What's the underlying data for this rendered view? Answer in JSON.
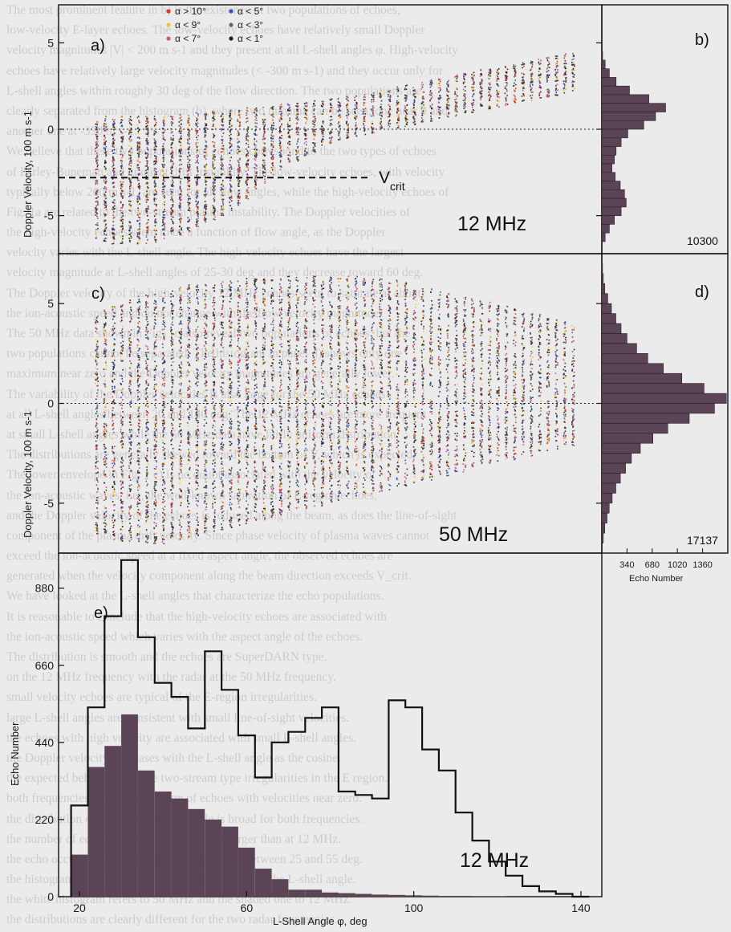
{
  "background_text": [
    "The most prominent feature in b) is the existence of two populations of echoes,",
    "low-velocity E-layer echoes. The low-velocity echoes have relatively small Doppler",
    "velocity magnitudes |V| < 200 m s-1 and they present at all L-shell angles φ. High-velocity",
    "echoes have relatively large velocity magnitudes (< -300 m s-1) and they occur only for",
    "L-shell angles within roughly 30 deg of the flow direction. The two populations are",
    "clearly separated from the histogram (b), where two maxima can be seen; one near 0 and",
    "another one at -350 m s-1.",
    "We believe that these two populations of echoes correspond to the two types of echoes",
    "of Farley-Buneman and gradient drift instability. The low-velocity echoes, with velocity",
    "typically below 200 m s-1, are seen for all flow angles, while the high-velocity echoes of",
    "Fig. 1a are related to the two-stream plasma instability. The Doppler velocities of",
    "the high-velocity echoes seem to be a function of flow angle, as the Doppler",
    "velocity varies with the L-shell angle. The high-velocity echoes have the largest",
    "velocity magnitude at L-shell angles of 25-30 deg and they decrease toward 60 deg.",
    "The Doppler velocity of the high-velocity 12 MHz echoes seem to saturate at about",
    "the ion-acoustic speed and do not change with the flow velocity magnitude.",
    "The 50 MHz data shown in Fig. 1c also reveal two populations of echoes, but the",
    "two populations cannot be separated. The histogram in panel d) shows only one",
    "maximum near zero and the Doppler velocity magnitudes are generally lower.",
    "The variability of the Doppler velocities is also large for the 50 MHz echoes",
    "at all L-shell angles between 20 and 140 deg. The 12 MHz echoes are more frequent",
    "at small L-shell angles while the 50 MHz data have fairly uniform distribution.",
    "The distributions are generally skewed toward the bottom of V, which is expected.",
    "The lower envelope in Fig. 1 c) is no doubt associated with the velocity of",
    "the ion-acoustic waves, i.e., the well-known saturation of E-region echoes,",
    "and the Doppler velocity of the echoes is reduced along the beam, as does the line-of-sight",
    "component of the plasma drift velocity. Since phase velocity of plasma waves cannot",
    "exceed the ion-acoustic speed at a fixed aspect angle, the observed echoes are",
    "generated when the velocity component along the beam direction exceeds V_crit.",
    "We have looked at the L-shell angles that characterize the echo populations.",
    "It is reasonable to conclude that the high-velocity echoes are associated with",
    "the ion-acoustic speed which varies with the aspect angle of the echoes.",
    "The distribution is smooth and the echoes are SuperDARN type.",
    "on the 12 MHz frequency with the radar at the 50 MHz frequency.",
    "small velocity echoes are typical of the E-region irregularities.",
    "large L-shell angles are consistent with small line-of-sight velocities.",
    "the echoes with high velocity are associated with small L-shell angles.",
    "the Doppler velocity decreases with the L-shell angle as the cosine.",
    "the expected behaviour for the two-stream type irregularities in the E region.",
    "both frequencies show a population of echoes with velocities near zero.",
    "the distribution of echoes in L-shell angle is broad for both frequencies.",
    "the number of echoes detected at 50 MHz is larger than at 12 MHz.",
    "the echo occurrence is highest at L-shell angles between 25 and 55 deg.",
    "the histograms e) show the number of echoes versus the L-shell angle.",
    "the white histogram refers to 50 MHz and the shaded one to 12 MHz.",
    "the distributions are clearly different for the two radar frequencies."
  ],
  "panel_labels": [
    "a)",
    "b)",
    "c)",
    "d)",
    "e)"
  ],
  "colors": {
    "hist_fill": "#5b4456",
    "dot_dark": "#333333",
    "alpha_gt_10": "#d93a2c",
    "alpha_lt_9": "#e8c93a",
    "alpha_lt_7": "#c45a8c",
    "alpha_lt_5": "#3a56c4",
    "alpha_lt_3": "#666666",
    "alpha_lt_1": "#222222"
  },
  "chart_data": [
    {
      "id": "a",
      "type": "scatter",
      "title": "",
      "frequency_label": "12 MHz",
      "xlim": [
        15,
        145
      ],
      "ylim": [
        -7.2,
        7.2
      ],
      "ylabel": "Doppler Velocity, 100 m s-1",
      "yticks": [
        -5,
        0,
        5
      ],
      "reference_lines": [
        {
          "y": 0,
          "style": "dotted"
        },
        {
          "y": -2.8,
          "style": "dashed",
          "label": "V",
          "label_sub": "crit"
        }
      ],
      "legend": [
        "α > 10°",
        "α < 9°",
        "α < 7°",
        "α < 5°",
        "α < 3°",
        "α < 1°"
      ],
      "legend_placement": "top-left",
      "x_bins": [
        24,
        26,
        28,
        30,
        32,
        34,
        36,
        38,
        40,
        42,
        44,
        46,
        48,
        50,
        52,
        54,
        56,
        58,
        60,
        62,
        64,
        66,
        68,
        70,
        72,
        74,
        76,
        78,
        80,
        82,
        84,
        86,
        88,
        90,
        92,
        94,
        96,
        98,
        100,
        102,
        104,
        106,
        108,
        110,
        112,
        114,
        116,
        118,
        120,
        122,
        124,
        126,
        128,
        130,
        132,
        134,
        136,
        138
      ],
      "column_ranges": [
        [
          -6.3,
          0.5
        ],
        [
          -6.5,
          0.8
        ],
        [
          -6.6,
          0.8
        ],
        [
          -6.6,
          0.8
        ],
        [
          -6.6,
          0.8
        ],
        [
          -6.6,
          0.8
        ],
        [
          -6.6,
          0.8
        ],
        [
          -6.5,
          0.8
        ],
        [
          -6.3,
          0.8
        ],
        [
          -6.2,
          0.8
        ],
        [
          -6.1,
          0.9
        ],
        [
          -5.9,
          0.9
        ],
        [
          -5.6,
          1.0
        ],
        [
          -5.4,
          1.0
        ],
        [
          -5.2,
          1.1
        ],
        [
          -5.0,
          1.1
        ],
        [
          -4.8,
          1.2
        ],
        [
          -4.4,
          1.2
        ],
        [
          -4.0,
          1.3
        ],
        [
          -3.5,
          1.3
        ],
        [
          -3.1,
          1.4
        ],
        [
          -2.6,
          1.4
        ],
        [
          -2.3,
          1.5
        ],
        [
          -2.0,
          1.5
        ],
        [
          -1.8,
          1.6
        ],
        [
          -1.5,
          1.6
        ],
        [
          -1.3,
          1.7
        ],
        [
          -1.0,
          1.7
        ],
        [
          -0.8,
          1.8
        ],
        [
          -0.6,
          1.9
        ],
        [
          -0.5,
          2.0
        ],
        [
          -0.4,
          2.0
        ],
        [
          -0.3,
          2.1
        ],
        [
          -0.2,
          2.2
        ],
        [
          -0.1,
          2.3
        ],
        [
          0.0,
          2.4
        ],
        [
          0.1,
          2.5
        ],
        [
          0.2,
          2.6
        ],
        [
          0.3,
          2.7
        ],
        [
          0.4,
          2.8
        ],
        [
          0.5,
          2.9
        ],
        [
          0.6,
          3.0
        ],
        [
          0.7,
          3.1
        ],
        [
          0.8,
          3.2
        ],
        [
          0.9,
          3.3
        ],
        [
          1.0,
          3.4
        ],
        [
          1.1,
          3.5
        ],
        [
          1.2,
          3.6
        ],
        [
          1.3,
          3.6
        ],
        [
          1.4,
          3.7
        ],
        [
          1.5,
          3.8
        ],
        [
          1.6,
          3.9
        ],
        [
          1.7,
          4.0
        ],
        [
          1.8,
          4.1
        ],
        [
          1.9,
          4.2
        ],
        [
          2.0,
          4.3
        ],
        [
          2.1,
          4.4
        ],
        [
          2.2,
          4.5
        ]
      ]
    },
    {
      "id": "b",
      "type": "bar",
      "orientation": "horizontal",
      "total_label": "10300",
      "bin_width": 0.5,
      "bins_y": [
        4.0,
        3.5,
        3.0,
        2.5,
        2.0,
        1.5,
        1.0,
        0.5,
        0.0,
        -0.5,
        -1.0,
        -1.5,
        -2.0,
        -2.5,
        -3.0,
        -3.5,
        -4.0,
        -4.5,
        -5.0,
        -5.5,
        -6.0,
        -6.5
      ],
      "values": [
        10,
        40,
        90,
        170,
        330,
        560,
        760,
        640,
        500,
        310,
        230,
        170,
        150,
        120,
        160,
        220,
        270,
        290,
        230,
        150,
        90,
        40
      ],
      "xlim": [
        0,
        1500
      ]
    },
    {
      "id": "c",
      "type": "scatter",
      "title": "",
      "frequency_label": "50 MHz",
      "xlim": [
        15,
        145
      ],
      "ylim": [
        -7.5,
        7.5
      ],
      "ylabel": "Doppler Velocity, 100 m s-1",
      "yticks": [
        -5,
        0,
        5
      ],
      "reference_lines": [
        {
          "y": 0,
          "style": "dotted"
        }
      ],
      "x_bins": [
        24,
        26,
        28,
        30,
        32,
        34,
        36,
        38,
        40,
        42,
        44,
        46,
        48,
        50,
        52,
        54,
        56,
        58,
        60,
        62,
        64,
        66,
        68,
        70,
        72,
        74,
        76,
        78,
        80,
        82,
        84,
        86,
        88,
        90,
        92,
        94,
        96,
        98,
        100,
        102,
        104,
        106,
        108,
        110,
        112,
        114,
        116,
        118,
        120,
        122,
        124,
        126,
        128,
        130,
        132,
        134,
        136,
        138
      ],
      "column_ranges": [
        [
          -6.5,
          4.5
        ],
        [
          -6.6,
          4.7
        ],
        [
          -6.8,
          4.9
        ],
        [
          -6.9,
          5.1
        ],
        [
          -7.0,
          5.2
        ],
        [
          -7.1,
          5.4
        ],
        [
          -7.1,
          5.5
        ],
        [
          -7.1,
          5.6
        ],
        [
          -7.0,
          5.7
        ],
        [
          -6.9,
          5.8
        ],
        [
          -6.8,
          5.9
        ],
        [
          -6.7,
          6.0
        ],
        [
          -6.6,
          6.0
        ],
        [
          -6.5,
          6.1
        ],
        [
          -6.4,
          6.1
        ],
        [
          -6.3,
          6.2
        ],
        [
          -6.2,
          6.2
        ],
        [
          -6.1,
          6.2
        ],
        [
          -6.0,
          6.3
        ],
        [
          -5.9,
          6.3
        ],
        [
          -5.8,
          6.3
        ],
        [
          -5.7,
          6.3
        ],
        [
          -5.6,
          6.4
        ],
        [
          -5.5,
          6.4
        ],
        [
          -5.4,
          6.4
        ],
        [
          -5.3,
          6.4
        ],
        [
          -5.2,
          6.4
        ],
        [
          -5.1,
          6.4
        ],
        [
          -5.0,
          6.4
        ],
        [
          -4.9,
          6.4
        ],
        [
          -4.8,
          6.4
        ],
        [
          -4.7,
          6.4
        ],
        [
          -4.6,
          6.3
        ],
        [
          -4.5,
          6.3
        ],
        [
          -4.4,
          6.3
        ],
        [
          -4.3,
          6.2
        ],
        [
          -4.2,
          6.2
        ],
        [
          -4.1,
          6.1
        ],
        [
          -4.0,
          6.0
        ],
        [
          -3.9,
          5.9
        ],
        [
          -3.8,
          5.8
        ],
        [
          -3.7,
          5.7
        ],
        [
          -3.6,
          5.6
        ],
        [
          -3.5,
          5.5
        ],
        [
          -3.4,
          5.4
        ],
        [
          -3.3,
          5.3
        ],
        [
          -3.2,
          5.2
        ],
        [
          -3.1,
          5.1
        ],
        [
          -3.0,
          5.0
        ],
        [
          -2.9,
          4.9
        ],
        [
          -2.8,
          4.8
        ],
        [
          -2.7,
          4.7
        ],
        [
          -2.6,
          4.6
        ],
        [
          -2.5,
          4.5
        ],
        [
          -2.4,
          4.4
        ],
        [
          -2.3,
          4.3
        ],
        [
          -2.2,
          4.2
        ],
        [
          -2.1,
          4.1
        ]
      ]
    },
    {
      "id": "d",
      "type": "bar",
      "orientation": "horizontal",
      "total_label": "17137",
      "bin_width": 0.5,
      "bins_y": [
        6.5,
        6.0,
        5.5,
        5.0,
        4.5,
        4.0,
        3.5,
        3.0,
        2.5,
        2.0,
        1.5,
        1.0,
        0.5,
        0.0,
        -0.5,
        -1.0,
        -1.5,
        -2.0,
        -2.5,
        -3.0,
        -3.5,
        -4.0,
        -4.5,
        -5.0,
        -5.5,
        -6.0,
        -6.5,
        -7.0
      ],
      "values": [
        10,
        20,
        40,
        80,
        130,
        190,
        260,
        340,
        470,
        620,
        830,
        1080,
        1380,
        1680,
        1520,
        1180,
        890,
        690,
        520,
        400,
        320,
        250,
        190,
        140,
        100,
        70,
        40,
        20
      ],
      "xlim": [
        0,
        1700
      ],
      "xticks": [
        340,
        680,
        1020,
        1360
      ],
      "xtick_labels": [
        "340",
        "680",
        "1020",
        "1360"
      ],
      "xlabel": "Echo Number"
    },
    {
      "id": "e",
      "type": "bar",
      "frequency_label": "12 MHz",
      "xlabel": "L-Shell Angle φ, deg",
      "ylabel": "Echo Number",
      "xlim": [
        15,
        145
      ],
      "ylim": [
        0,
        980
      ],
      "xticks": [
        20,
        60,
        100,
        140
      ],
      "yticks": [
        0,
        220,
        440,
        660,
        880
      ],
      "bin_width": 4,
      "bin_starts": [
        18,
        22,
        26,
        30,
        34,
        38,
        42,
        46,
        50,
        54,
        58,
        62,
        66,
        70,
        74,
        78,
        82,
        86,
        90,
        94,
        98,
        102,
        106,
        110,
        114,
        118,
        122,
        126,
        130,
        134,
        138
      ],
      "series": [
        {
          "name": "",
          "style": "outline",
          "values": [
            260,
            540,
            800,
            960,
            740,
            610,
            570,
            480,
            700,
            590,
            460,
            340,
            440,
            470,
            510,
            540,
            300,
            290,
            280,
            560,
            540,
            420,
            360,
            240,
            160,
            100,
            60,
            30,
            15,
            8,
            0
          ]
        },
        {
          "name": "",
          "style": "filled",
          "values": [
            120,
            370,
            430,
            520,
            360,
            300,
            280,
            250,
            220,
            200,
            140,
            80,
            50,
            20,
            20,
            12,
            10,
            8,
            6,
            5,
            4,
            3,
            2,
            2,
            1,
            1,
            0,
            0,
            0,
            0,
            0
          ]
        }
      ]
    }
  ]
}
